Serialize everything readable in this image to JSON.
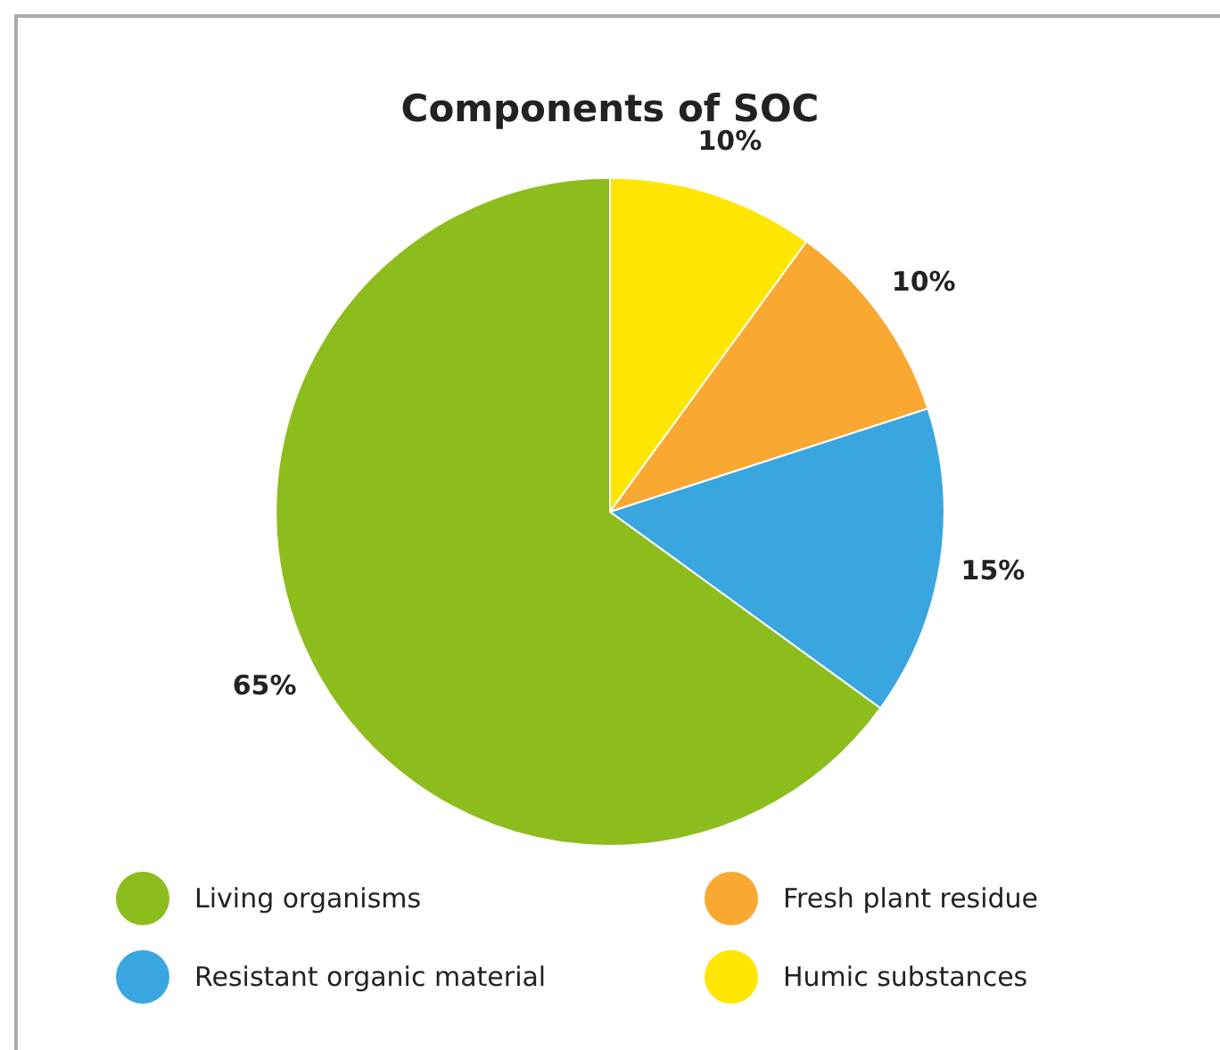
{
  "chart_data": {
    "type": "pie",
    "title": "Components of SOC",
    "categories": [
      "Humic substances",
      "Fresh plant residue",
      "Resistant organic material",
      "Living organisms"
    ],
    "values": [
      10,
      10,
      15,
      65
    ],
    "colors": [
      "#ffe600",
      "#f9a832",
      "#3aa6e0",
      "#8cbd1c"
    ],
    "value_labels": [
      "10%",
      "10%",
      "15%",
      "65%"
    ],
    "legend": "bottom"
  }
}
